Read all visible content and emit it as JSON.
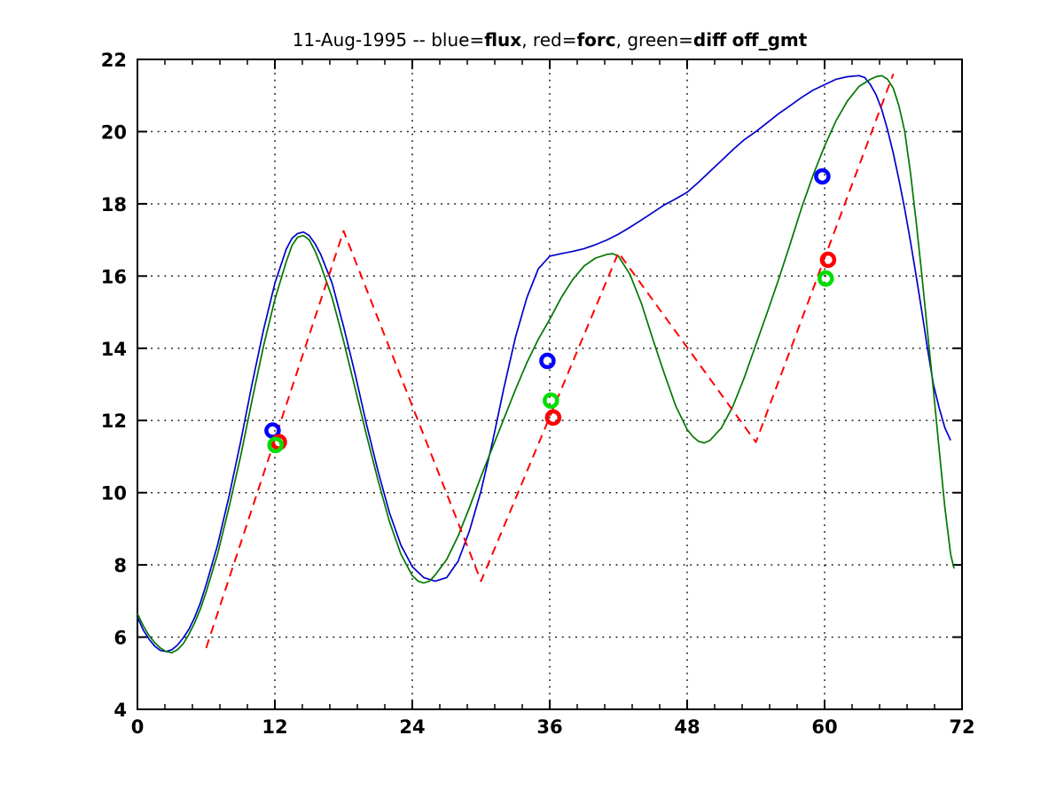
{
  "figure": {
    "background": "#ffffff",
    "axes_color": "#000000"
  },
  "chart_data": {
    "type": "line",
    "title": "11-Aug-1995 -- blue=flux, red=forc, green=diff off_gmt",
    "title_parts": [
      {
        "text": "11-Aug-1995 -- blue=",
        "bold": false
      },
      {
        "text": "flux",
        "bold": true
      },
      {
        "text": ", red=",
        "bold": false
      },
      {
        "text": "forc",
        "bold": true
      },
      {
        "text": ", green=",
        "bold": false
      },
      {
        "text": "diff",
        "bold": true
      },
      {
        "text": " ",
        "bold": false
      },
      {
        "text": "off_gmt",
        "bold": true
      }
    ],
    "xlabel": "",
    "ylabel": "",
    "xlim": [
      0,
      72
    ],
    "ylim": [
      4,
      22
    ],
    "grid": "dotted",
    "x_ticks": {
      "values": [
        0,
        12,
        24,
        36,
        48,
        60,
        72
      ],
      "labels": [
        "0",
        "12",
        "24",
        "36",
        "48",
        "60",
        "72"
      ],
      "minor_per_interval": 4
    },
    "y_ticks": {
      "values": [
        4,
        6,
        8,
        10,
        12,
        14,
        16,
        18,
        20,
        22
      ],
      "labels": [
        "4",
        "6",
        "8",
        "10",
        "12",
        "14",
        "16",
        "18",
        "20",
        "22"
      ]
    },
    "series": [
      {
        "name": "flux",
        "color": "#0000cc",
        "style": "solid",
        "points": [
          [
            0,
            6.55
          ],
          [
            0.5,
            6.2
          ],
          [
            1,
            5.95
          ],
          [
            1.5,
            5.75
          ],
          [
            2,
            5.63
          ],
          [
            2.5,
            5.6
          ],
          [
            3,
            5.65
          ],
          [
            3.5,
            5.78
          ],
          [
            4,
            5.98
          ],
          [
            4.5,
            6.22
          ],
          [
            5,
            6.55
          ],
          [
            5.5,
            6.95
          ],
          [
            6,
            7.45
          ],
          [
            7,
            8.55
          ],
          [
            8,
            9.9
          ],
          [
            9,
            11.4
          ],
          [
            10,
            13.0
          ],
          [
            11,
            14.5
          ],
          [
            12,
            15.8
          ],
          [
            13,
            16.75
          ],
          [
            13.5,
            17.05
          ],
          [
            14,
            17.18
          ],
          [
            14.5,
            17.22
          ],
          [
            15,
            17.12
          ],
          [
            15.5,
            16.9
          ],
          [
            16,
            16.6
          ],
          [
            17,
            15.8
          ],
          [
            18,
            14.6
          ],
          [
            19,
            13.3
          ],
          [
            20,
            11.9
          ],
          [
            21,
            10.6
          ],
          [
            22,
            9.45
          ],
          [
            23,
            8.55
          ],
          [
            24,
            7.95
          ],
          [
            25,
            7.65
          ],
          [
            26,
            7.55
          ],
          [
            27,
            7.65
          ],
          [
            28,
            8.1
          ],
          [
            29,
            8.95
          ],
          [
            30,
            10.05
          ],
          [
            31,
            11.4
          ],
          [
            32,
            12.9
          ],
          [
            33,
            14.3
          ],
          [
            34,
            15.4
          ],
          [
            35,
            16.2
          ],
          [
            36,
            16.55
          ],
          [
            37,
            16.62
          ],
          [
            38,
            16.68
          ],
          [
            39,
            16.76
          ],
          [
            40,
            16.87
          ],
          [
            41,
            17.0
          ],
          [
            42,
            17.16
          ],
          [
            43,
            17.35
          ],
          [
            44,
            17.55
          ],
          [
            45,
            17.76
          ],
          [
            46,
            17.97
          ],
          [
            47,
            18.14
          ],
          [
            48,
            18.32
          ],
          [
            49,
            18.6
          ],
          [
            50,
            18.9
          ],
          [
            51,
            19.2
          ],
          [
            52,
            19.5
          ],
          [
            53,
            19.78
          ],
          [
            54,
            20.0
          ],
          [
            55,
            20.25
          ],
          [
            56,
            20.5
          ],
          [
            57,
            20.72
          ],
          [
            58,
            20.95
          ],
          [
            59,
            21.15
          ],
          [
            60,
            21.3
          ],
          [
            61,
            21.45
          ],
          [
            62,
            21.52
          ],
          [
            63,
            21.55
          ],
          [
            63.5,
            21.5
          ],
          [
            64,
            21.3
          ],
          [
            64.5,
            21.02
          ],
          [
            65,
            20.6
          ],
          [
            65.5,
            20.05
          ],
          [
            66,
            19.4
          ],
          [
            66.5,
            18.65
          ],
          [
            67,
            17.85
          ],
          [
            67.5,
            16.95
          ],
          [
            68,
            16.0
          ],
          [
            68.5,
            15.0
          ],
          [
            69,
            13.95
          ],
          [
            69.5,
            13.0
          ],
          [
            70,
            12.35
          ],
          [
            70.5,
            11.8
          ],
          [
            71,
            11.45
          ]
        ]
      },
      {
        "name": "diff",
        "color": "#007700",
        "style": "solid",
        "points": [
          [
            0,
            6.65
          ],
          [
            0.5,
            6.32
          ],
          [
            1,
            6.05
          ],
          [
            1.5,
            5.85
          ],
          [
            2,
            5.7
          ],
          [
            2.5,
            5.6
          ],
          [
            3,
            5.57
          ],
          [
            3.5,
            5.65
          ],
          [
            4,
            5.82
          ],
          [
            4.5,
            6.08
          ],
          [
            5,
            6.4
          ],
          [
            5.5,
            6.78
          ],
          [
            6,
            7.25
          ],
          [
            7,
            8.3
          ],
          [
            8,
            9.6
          ],
          [
            9,
            11.0
          ],
          [
            10,
            12.55
          ],
          [
            11,
            14.05
          ],
          [
            12,
            15.35
          ],
          [
            13,
            16.4
          ],
          [
            13.5,
            16.85
          ],
          [
            14,
            17.08
          ],
          [
            14.5,
            17.12
          ],
          [
            15,
            17.0
          ],
          [
            15.5,
            16.7
          ],
          [
            16,
            16.3
          ],
          [
            17,
            15.4
          ],
          [
            18,
            14.2
          ],
          [
            19,
            12.9
          ],
          [
            20,
            11.6
          ],
          [
            21,
            10.35
          ],
          [
            22,
            9.2
          ],
          [
            23,
            8.3
          ],
          [
            24,
            7.7
          ],
          [
            24.5,
            7.55
          ],
          [
            25,
            7.5
          ],
          [
            25.5,
            7.55
          ],
          [
            26,
            7.72
          ],
          [
            27,
            8.15
          ],
          [
            28,
            8.8
          ],
          [
            29,
            9.6
          ],
          [
            30,
            10.45
          ],
          [
            31,
            11.25
          ],
          [
            32,
            12.05
          ],
          [
            33,
            12.85
          ],
          [
            34,
            13.6
          ],
          [
            35,
            14.25
          ],
          [
            36,
            14.8
          ],
          [
            37,
            15.4
          ],
          [
            38,
            15.9
          ],
          [
            39,
            16.28
          ],
          [
            40,
            16.5
          ],
          [
            41,
            16.6
          ],
          [
            41.5,
            16.62
          ],
          [
            42,
            16.55
          ],
          [
            43,
            16.05
          ],
          [
            44,
            15.25
          ],
          [
            45,
            14.25
          ],
          [
            46,
            13.3
          ],
          [
            47,
            12.4
          ],
          [
            48,
            11.75
          ],
          [
            48.5,
            11.55
          ],
          [
            49,
            11.42
          ],
          [
            49.5,
            11.38
          ],
          [
            50,
            11.45
          ],
          [
            51,
            11.8
          ],
          [
            52,
            12.4
          ],
          [
            53,
            13.2
          ],
          [
            54,
            14.1
          ],
          [
            55,
            15.0
          ],
          [
            56,
            15.92
          ],
          [
            57,
            16.9
          ],
          [
            58,
            17.9
          ],
          [
            59,
            18.8
          ],
          [
            60,
            19.6
          ],
          [
            61,
            20.3
          ],
          [
            62,
            20.85
          ],
          [
            63,
            21.25
          ],
          [
            64,
            21.45
          ],
          [
            64.5,
            21.52
          ],
          [
            65,
            21.55
          ],
          [
            65.5,
            21.45
          ],
          [
            66,
            21.2
          ],
          [
            66.5,
            20.7
          ],
          [
            67,
            20.0
          ],
          [
            67.5,
            18.85
          ],
          [
            68,
            17.5
          ],
          [
            68.5,
            16.0
          ],
          [
            69,
            14.4
          ],
          [
            69.5,
            12.85
          ],
          [
            70,
            11.2
          ],
          [
            70.5,
            9.6
          ],
          [
            71,
            8.3
          ],
          [
            71.3,
            7.9
          ]
        ]
      },
      {
        "name": "forc",
        "color": "#ff0000",
        "style": "dashed",
        "points": [
          [
            6,
            5.7
          ],
          [
            18,
            17.25
          ],
          [
            30,
            7.55
          ],
          [
            42,
            16.65
          ],
          [
            54,
            11.4
          ],
          [
            66,
            21.6
          ]
        ]
      }
    ],
    "markers": [
      {
        "name": "flux-points",
        "color": "#0000ff",
        "points": [
          [
            11.8,
            11.72
          ],
          [
            35.8,
            13.65
          ],
          [
            59.8,
            18.76
          ]
        ]
      },
      {
        "name": "forc-points",
        "color": "#ff0000",
        "points": [
          [
            12.35,
            11.4
          ],
          [
            36.3,
            12.08
          ],
          [
            60.3,
            16.45
          ]
        ]
      },
      {
        "name": "diff-points",
        "color": "#00dd00",
        "points": [
          [
            12.05,
            11.32
          ],
          [
            36.1,
            12.55
          ],
          [
            60.1,
            15.93
          ]
        ]
      }
    ]
  }
}
